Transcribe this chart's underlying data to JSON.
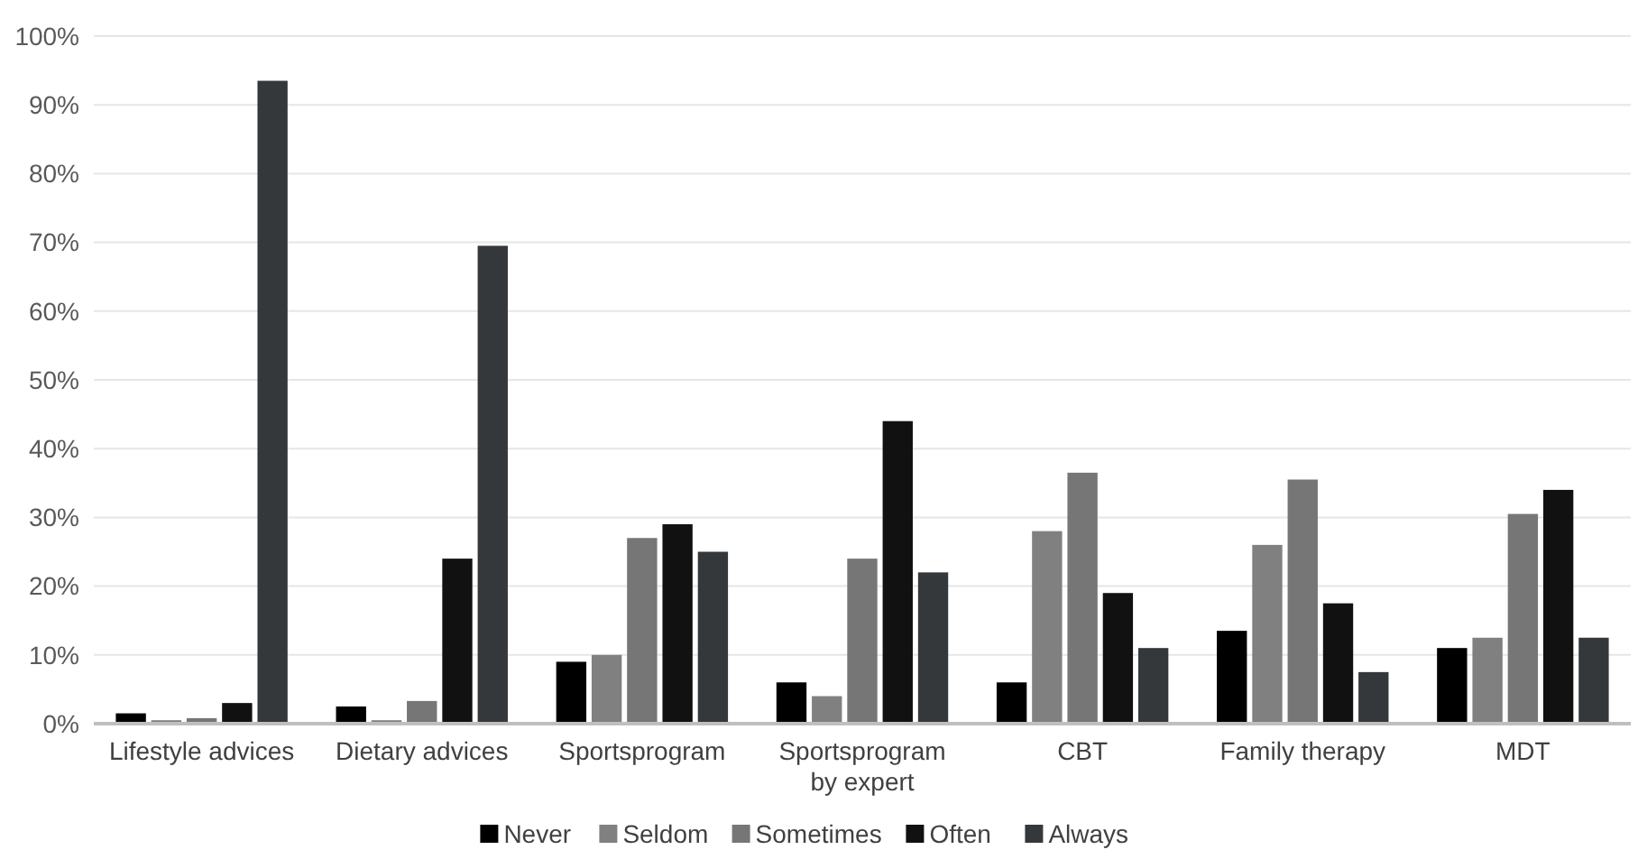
{
  "chart_data": {
    "type": "bar",
    "categories": [
      "Lifestyle advices",
      "Dietary advices",
      "Sportsprogram",
      "Sportsprogram by expert",
      "CBT",
      "Family therapy",
      "MDT"
    ],
    "series": [
      {
        "name": "Never",
        "color": "#000000",
        "values": [
          1.5,
          2.5,
          9,
          6,
          6,
          13.5,
          11
        ]
      },
      {
        "name": "Seldom",
        "color": "#808080",
        "values": [
          0.5,
          0.5,
          10,
          4,
          28,
          26,
          12.5
        ]
      },
      {
        "name": "Sometimes",
        "color": "#767676",
        "values": [
          0.8,
          3.3,
          27,
          24,
          36.5,
          35.5,
          30.5
        ]
      },
      {
        "name": "Often",
        "color": "#111111",
        "values": [
          3,
          24,
          29,
          44,
          19,
          17.5,
          34
        ]
      },
      {
        "name": "Always",
        "color": "#35383b",
        "values": [
          93.5,
          69.5,
          25,
          22,
          11,
          7.5,
          12.5
        ]
      }
    ],
    "ylim": [
      0,
      100
    ],
    "yticks": [
      {
        "value": 0,
        "label": "0%"
      },
      {
        "value": 10,
        "label": "10%"
      },
      {
        "value": 20,
        "label": "20%"
      },
      {
        "value": 30,
        "label": "30%"
      },
      {
        "value": 40,
        "label": "40%"
      },
      {
        "value": 50,
        "label": "50%"
      },
      {
        "value": 60,
        "label": "60%"
      },
      {
        "value": 70,
        "label": "70%"
      },
      {
        "value": 80,
        "label": "80%"
      },
      {
        "value": 90,
        "label": "90%"
      },
      {
        "value": 100,
        "label": "100%"
      }
    ],
    "grid": "y",
    "legend": "bottom"
  }
}
